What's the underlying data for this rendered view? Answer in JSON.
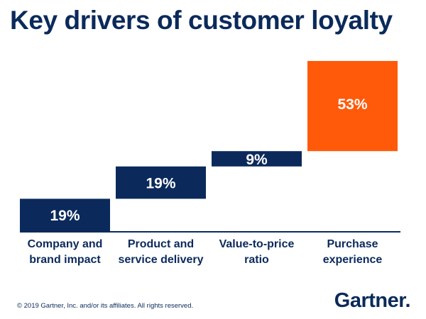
{
  "title": "Key drivers of customer loyalty",
  "chart_data": {
    "type": "waterfall",
    "title": "Key drivers of customer loyalty",
    "categories": [
      [
        "Company and",
        "brand impact"
      ],
      [
        "Product and",
        "service delivery"
      ],
      [
        "Value-to-price",
        "ratio"
      ],
      [
        "Purchase",
        "experience"
      ]
    ],
    "values": [
      19,
      19,
      9,
      53
    ],
    "value_labels": [
      "19%",
      "19%",
      "9%",
      "53%"
    ],
    "unit": "%",
    "ylim": [
      0,
      100
    ],
    "colors": [
      "#0b2a5b",
      "#0b2a5b",
      "#0b2a5b",
      "#ff5a0a"
    ]
  },
  "footer": "© 2019 Gartner, Inc. and/or its affiliates. All rights reserved.",
  "brand": "Gartner",
  "brand_dot": "."
}
